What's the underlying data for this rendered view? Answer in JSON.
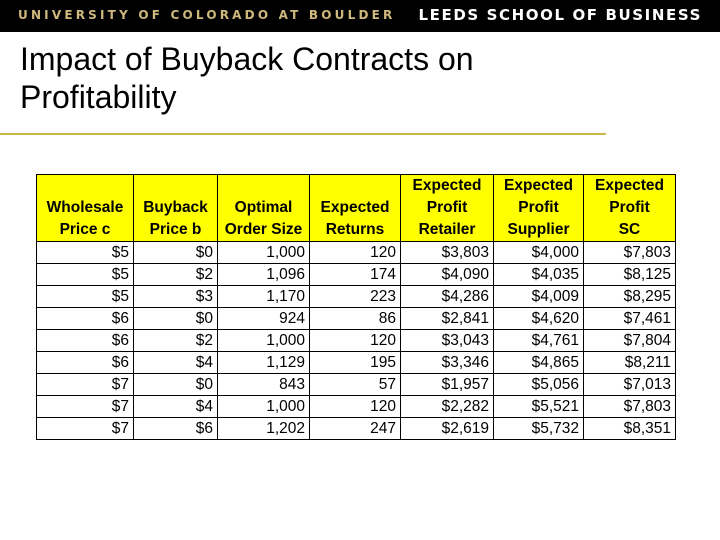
{
  "banner": {
    "left_text": "UNIVERSITY OF COLORADO AT BOULDER",
    "right_text": "LEEDS SCHOOL OF BUSINESS"
  },
  "title": {
    "line1": "Impact of Buyback Contracts on",
    "line2": "Profitability"
  },
  "colors": {
    "header_fill": "#ffff00",
    "rule": "#c8b84a",
    "banner_gold": "#cfb87c"
  },
  "table": {
    "headers": [
      [
        "",
        "Wholesale",
        "Price c"
      ],
      [
        "",
        "Buyback",
        "Price b"
      ],
      [
        "",
        "Optimal",
        "Order Size"
      ],
      [
        "",
        "Expected",
        "Returns"
      ],
      [
        "Expected",
        "Profit",
        "Retailer"
      ],
      [
        "Expected",
        "Profit",
        "Supplier"
      ],
      [
        "Expected",
        "Profit",
        "SC"
      ]
    ],
    "rows": [
      [
        "$5",
        "$0",
        "1,000",
        "120",
        "$3,803",
        "$4,000",
        "$7,803"
      ],
      [
        "$5",
        "$2",
        "1,096",
        "174",
        "$4,090",
        "$4,035",
        "$8,125"
      ],
      [
        "$5",
        "$3",
        "1,170",
        "223",
        "$4,286",
        "$4,009",
        "$8,295"
      ],
      [
        "$6",
        "$0",
        "924",
        "86",
        "$2,841",
        "$4,620",
        "$7,461"
      ],
      [
        "$6",
        "$2",
        "1,000",
        "120",
        "$3,043",
        "$4,761",
        "$7,804"
      ],
      [
        "$6",
        "$4",
        "1,129",
        "195",
        "$3,346",
        "$4,865",
        "$8,211"
      ],
      [
        "$7",
        "$0",
        "843",
        "57",
        "$1,957",
        "$5,056",
        "$7,013"
      ],
      [
        "$7",
        "$4",
        "1,000",
        "120",
        "$2,282",
        "$5,521",
        "$7,803"
      ],
      [
        "$7",
        "$6",
        "1,202",
        "247",
        "$2,619",
        "$5,732",
        "$8,351"
      ]
    ]
  }
}
